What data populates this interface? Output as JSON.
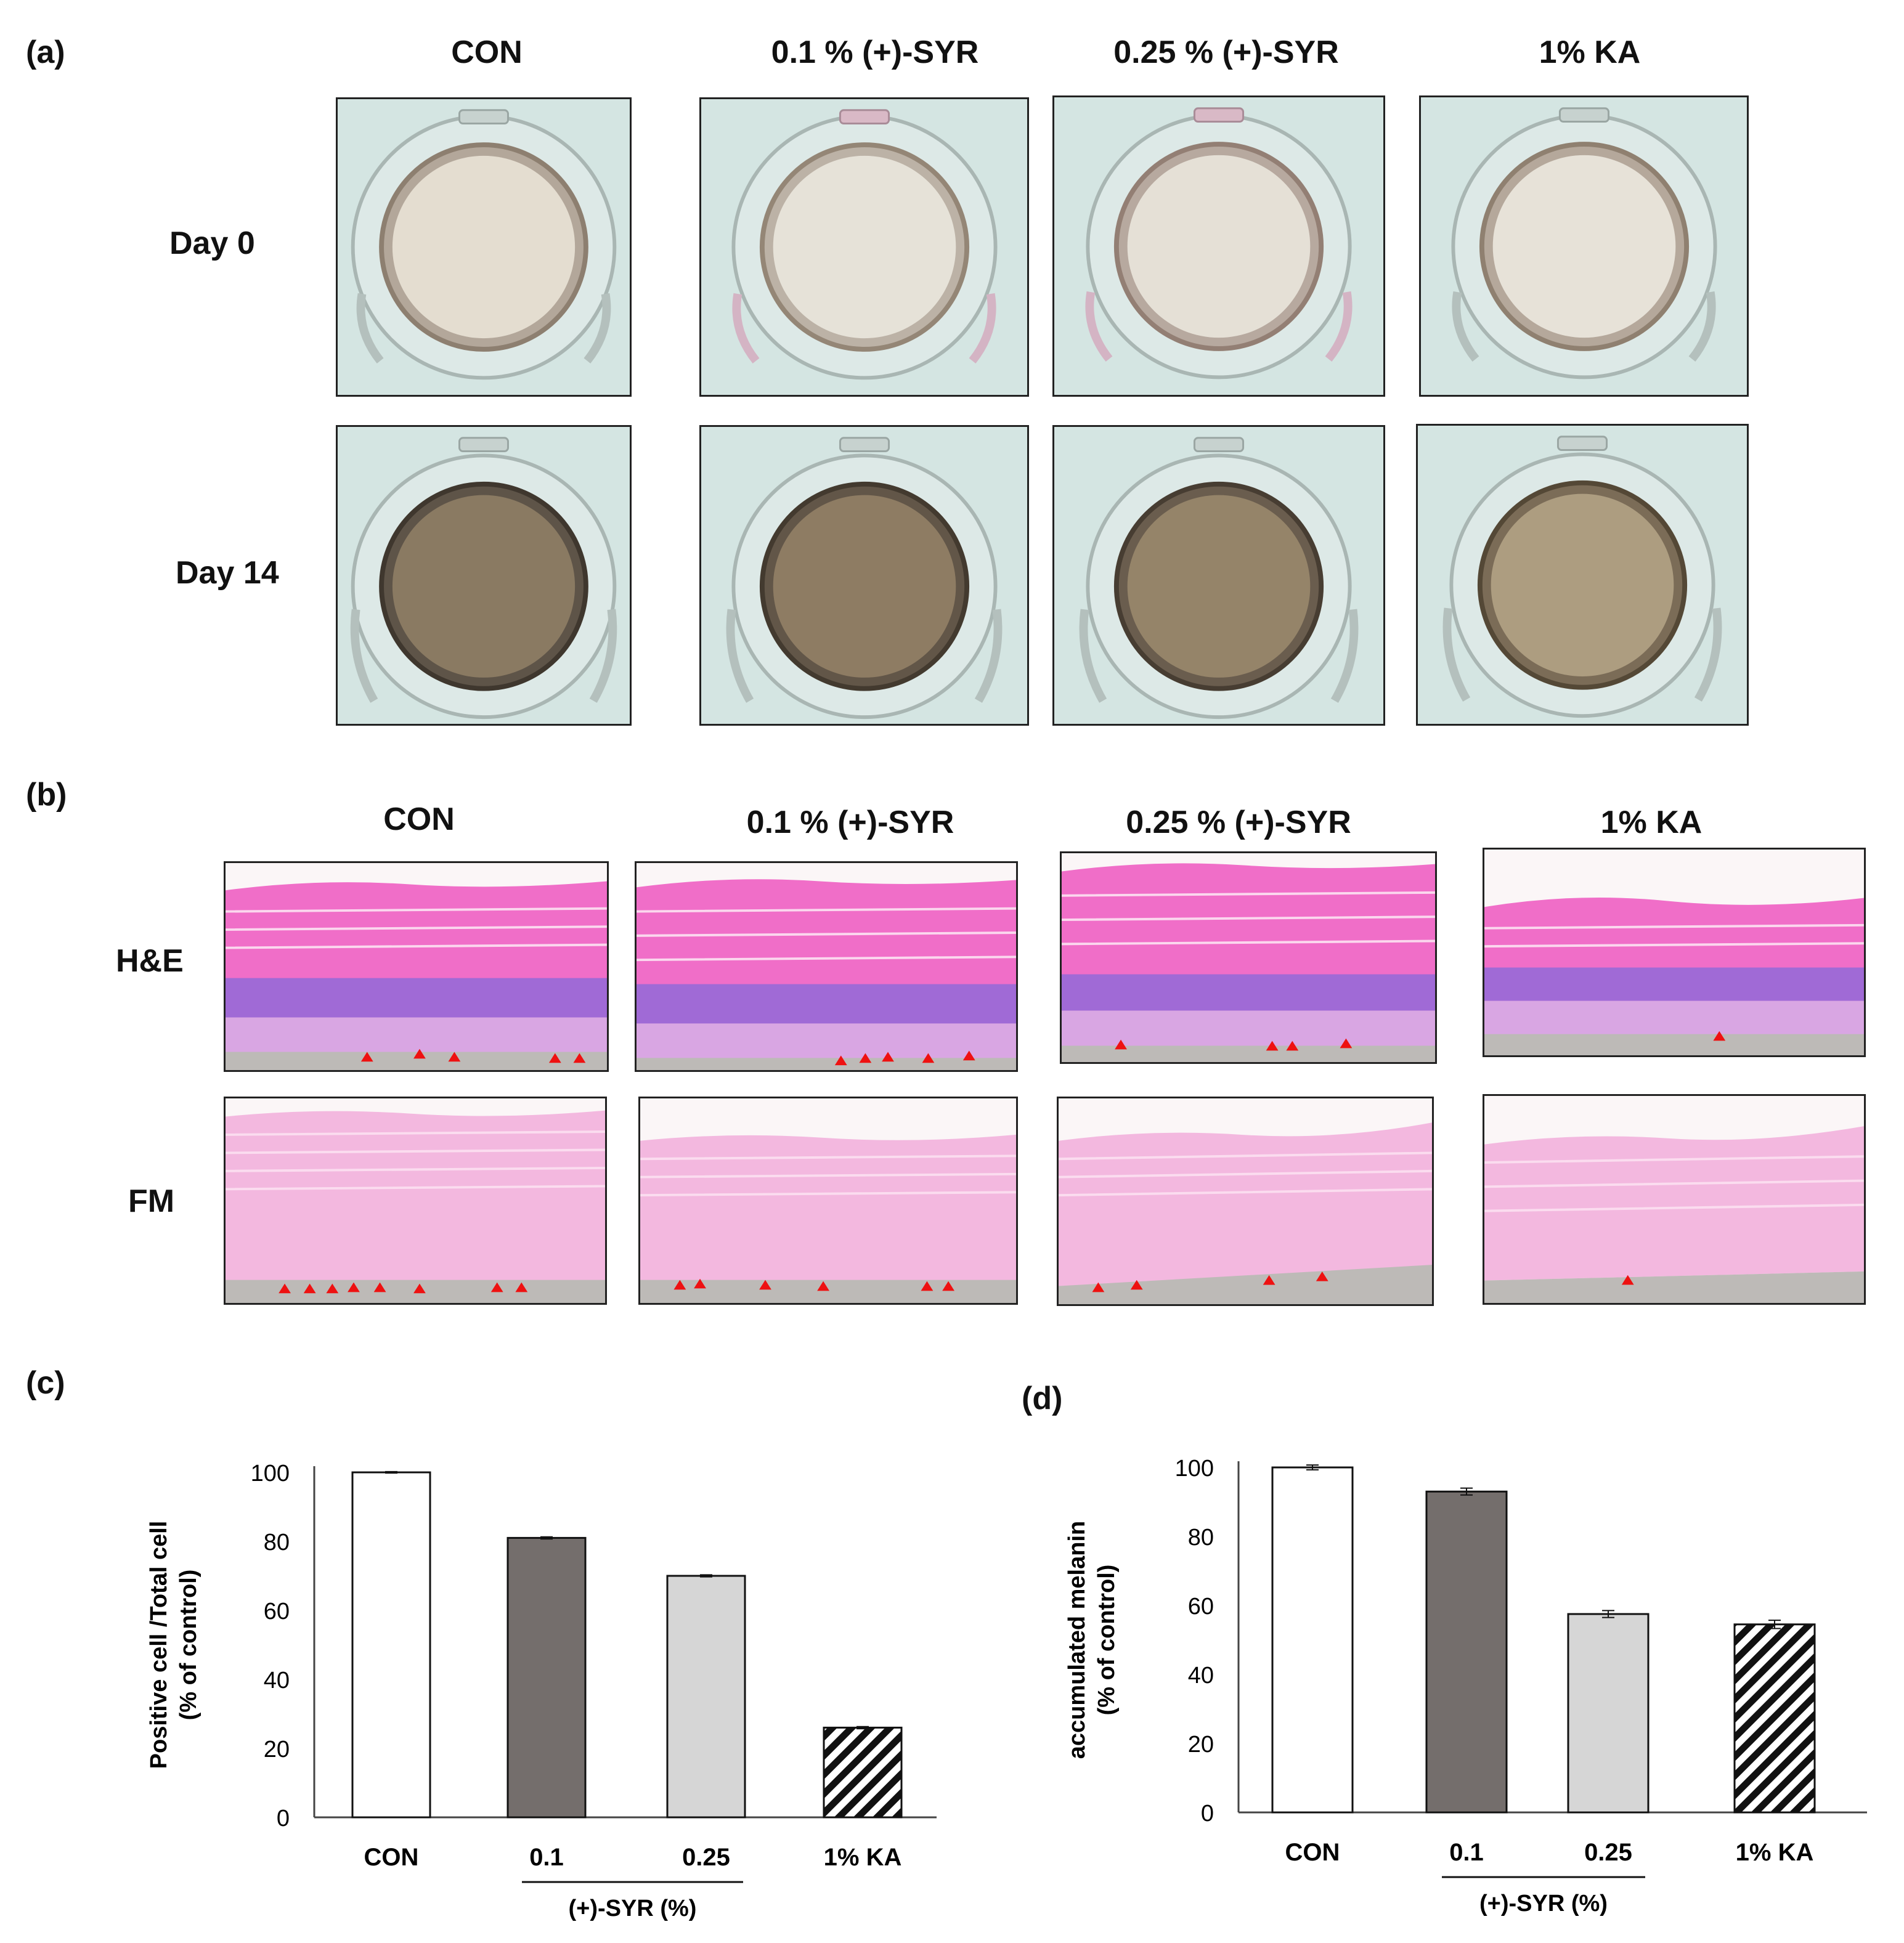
{
  "panels": {
    "a": {
      "label": "(a)",
      "columns": [
        "CON",
        "0.1 % (+)-SYR",
        "0.25 % (+)-SYR",
        "1% KA"
      ],
      "rows": [
        "Day 0",
        "Day 14"
      ]
    },
    "b": {
      "label": "(b)",
      "columns": [
        "CON",
        "0.1 % (+)-SYR",
        "0.25 % (+)-SYR",
        "1% KA"
      ],
      "rows": [
        "H&E",
        "FM"
      ]
    },
    "c": {
      "label": "(c)"
    },
    "d": {
      "label": "(d)"
    }
  },
  "colors": {
    "photo_bg": "#d4e5e2",
    "melanin_day0": "#e4ddd0",
    "melanin_day14": "#8a7a62",
    "eosin_strong": "#f06ec8",
    "eosin_light": "#f3b8df",
    "hematoxylin": "#a06ad6",
    "marker": "#ee1111",
    "bar_con": "#ffffff",
    "bar_01": "#746e6c",
    "bar_025": "#d6d6d6",
    "bar_ka": "#ffffff"
  },
  "chart_data": [
    {
      "type": "bar",
      "panel": "c",
      "categories": [
        "CON",
        "0.1",
        "0.25",
        "1% KA"
      ],
      "values": [
        100,
        81,
        70,
        26
      ],
      "errors": [
        0.2,
        0.3,
        0.3,
        0.3
      ],
      "ylabel": "Positive cell /Total cell (% of control)",
      "group_label": "(+)-SYR (%)",
      "yticks": [
        0,
        20,
        40,
        60,
        80,
        100
      ],
      "ylim": [
        0,
        100
      ]
    },
    {
      "type": "bar",
      "panel": "d",
      "categories": [
        "CON",
        "0.1",
        "0.25",
        "1% KA"
      ],
      "values": [
        100,
        93,
        57.5,
        54.5
      ],
      "errors": [
        0.7,
        1.0,
        1.0,
        1.2
      ],
      "ylabel": "accumulated melanin (% of control)",
      "group_label": "(+)-SYR (%)",
      "yticks": [
        0,
        20,
        40,
        60,
        80,
        100
      ],
      "ylim": [
        0,
        100
      ]
    }
  ]
}
